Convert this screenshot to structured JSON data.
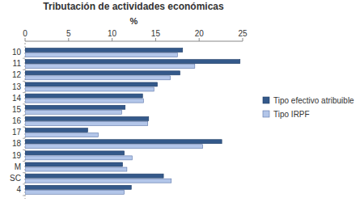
{
  "chart_data": {
    "type": "bar",
    "orientation": "horizontal",
    "title": "Tributación de actividades económicas",
    "x_label": "%",
    "categories": [
      "10",
      "11",
      "12",
      "13",
      "14",
      "15",
      "16",
      "17",
      "18",
      "19",
      "M",
      "SC",
      "4"
    ],
    "series": [
      {
        "name": "Tipo efectivo atribuible",
        "color": "#34598a",
        "values": [
          18.1,
          24.7,
          17.8,
          15.2,
          13.5,
          11.5,
          14.2,
          7.2,
          22.6,
          11.4,
          11.2,
          15.9,
          12.2
        ]
      },
      {
        "name": "Tipo IRPF",
        "color": "#b3c6e9",
        "values": [
          17.5,
          19.5,
          16.7,
          14.8,
          13.6,
          11.1,
          14.1,
          8.4,
          20.4,
          12.3,
          11.7,
          16.8,
          11.4
        ]
      }
    ],
    "xlim": [
      0,
      25
    ],
    "xticks": [
      0,
      5,
      10,
      15,
      20,
      25
    ],
    "grid": false,
    "legend": "right"
  }
}
